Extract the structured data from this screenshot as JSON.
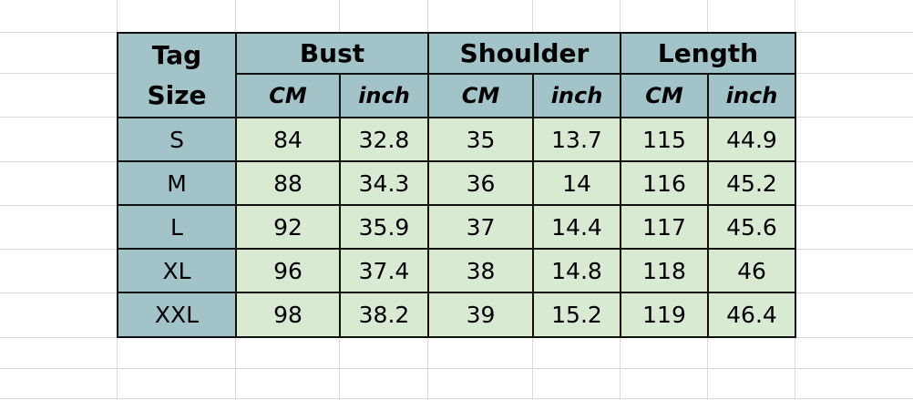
{
  "header": {
    "tag_size": [
      "Tag",
      "Size"
    ],
    "groups": [
      "Bust",
      "Shoulder",
      "Length"
    ],
    "units": [
      "CM",
      "inch",
      "CM",
      "inch",
      "CM",
      "inch"
    ]
  },
  "rows": [
    {
      "size": "S",
      "values": [
        "84",
        "32.8",
        "35",
        "13.7",
        "115",
        "44.9"
      ]
    },
    {
      "size": "M",
      "values": [
        "88",
        "34.3",
        "36",
        "14",
        "116",
        "45.2"
      ]
    },
    {
      "size": "L",
      "values": [
        "92",
        "35.9",
        "37",
        "14.4",
        "117",
        "45.6"
      ]
    },
    {
      "size": "XL",
      "values": [
        "96",
        "37.4",
        "38",
        "14.8",
        "118",
        "46"
      ]
    },
    {
      "size": "XXL",
      "values": [
        "98",
        "38.2",
        "39",
        "15.2",
        "119",
        "46.4"
      ]
    }
  ],
  "colors": {
    "header_bg": "#a2c4c9",
    "data_bg": "#d9ead3",
    "gridline": "#d9d9d9"
  }
}
